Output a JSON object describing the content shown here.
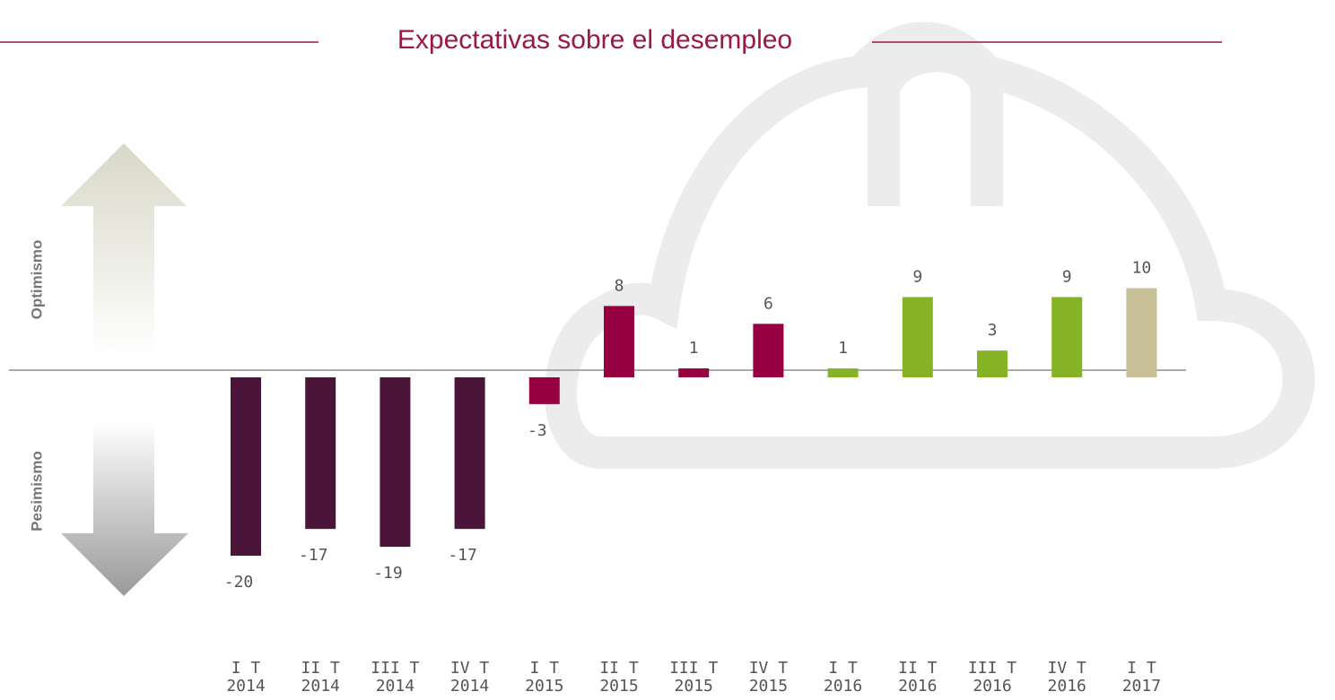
{
  "chart_data": {
    "type": "bar",
    "title": "Expectativas sobre el desempleo",
    "side_labels": {
      "top": "Optimismo",
      "bottom": "Pesimismo"
    },
    "categories": [
      [
        "I T",
        "2014"
      ],
      [
        "II T",
        "2014"
      ],
      [
        "III T",
        "2014"
      ],
      [
        "IV T",
        "2014"
      ],
      [
        "I T",
        "2015"
      ],
      [
        "II T",
        "2015"
      ],
      [
        "III T",
        "2015"
      ],
      [
        "IV T",
        "2015"
      ],
      [
        "I T",
        "2016"
      ],
      [
        "II T",
        "2016"
      ],
      [
        "III T",
        "2016"
      ],
      [
        "IV T",
        "2016"
      ],
      [
        "I T",
        "2017"
      ]
    ],
    "values": [
      -20,
      -17,
      -19,
      -17,
      -3,
      8,
      1,
      6,
      1,
      9,
      3,
      9,
      10
    ],
    "colors": [
      "#4a1538",
      "#4a1538",
      "#4a1538",
      "#4a1538",
      "#960040",
      "#960040",
      "#960040",
      "#960040",
      "#86b225",
      "#86b225",
      "#86b225",
      "#86b225",
      "#c6bf98"
    ]
  }
}
